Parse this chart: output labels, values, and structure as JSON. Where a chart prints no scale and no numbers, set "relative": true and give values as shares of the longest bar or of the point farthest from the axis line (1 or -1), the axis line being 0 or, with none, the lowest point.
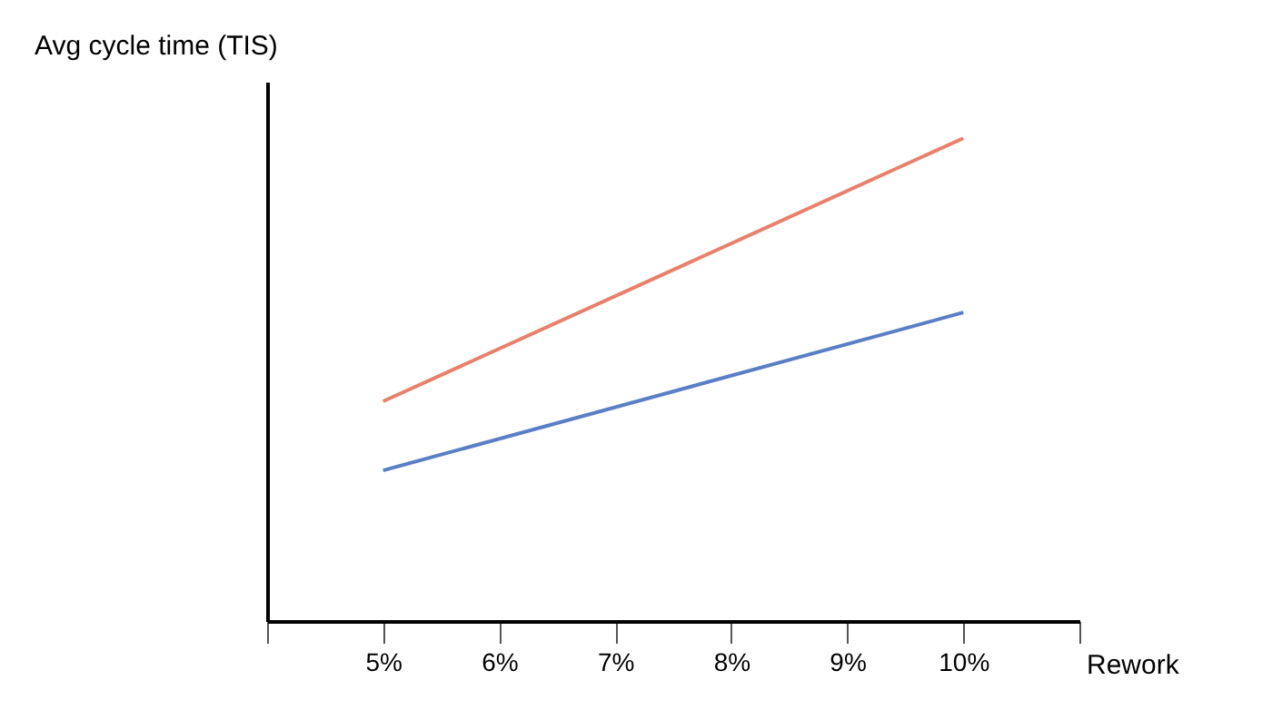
{
  "chart_data": {
    "type": "line",
    "ylabel": "Avg cycle time (TIS)",
    "xlabel": "Rework",
    "relative": true,
    "x": [
      5,
      10
    ],
    "xlim": [
      4,
      11
    ],
    "xticks": [
      {
        "value": 4,
        "label": null
      },
      {
        "value": 5,
        "label": "5%"
      },
      {
        "value": 6,
        "label": "6%"
      },
      {
        "value": 7,
        "label": "7%"
      },
      {
        "value": 8,
        "label": "8%"
      },
      {
        "value": 9,
        "label": "9%"
      },
      {
        "value": 10,
        "label": "10%"
      },
      {
        "value": 11,
        "label": null
      }
    ],
    "series": [
      {
        "color": "#e8806c",
        "values": [
          0.455,
          1
        ]
      },
      {
        "color": "#5a7fc6",
        "values": [
          0.312,
          0.639
        ]
      }
    ],
    "grid": false,
    "marker": "none",
    "line_style": "solid"
  }
}
